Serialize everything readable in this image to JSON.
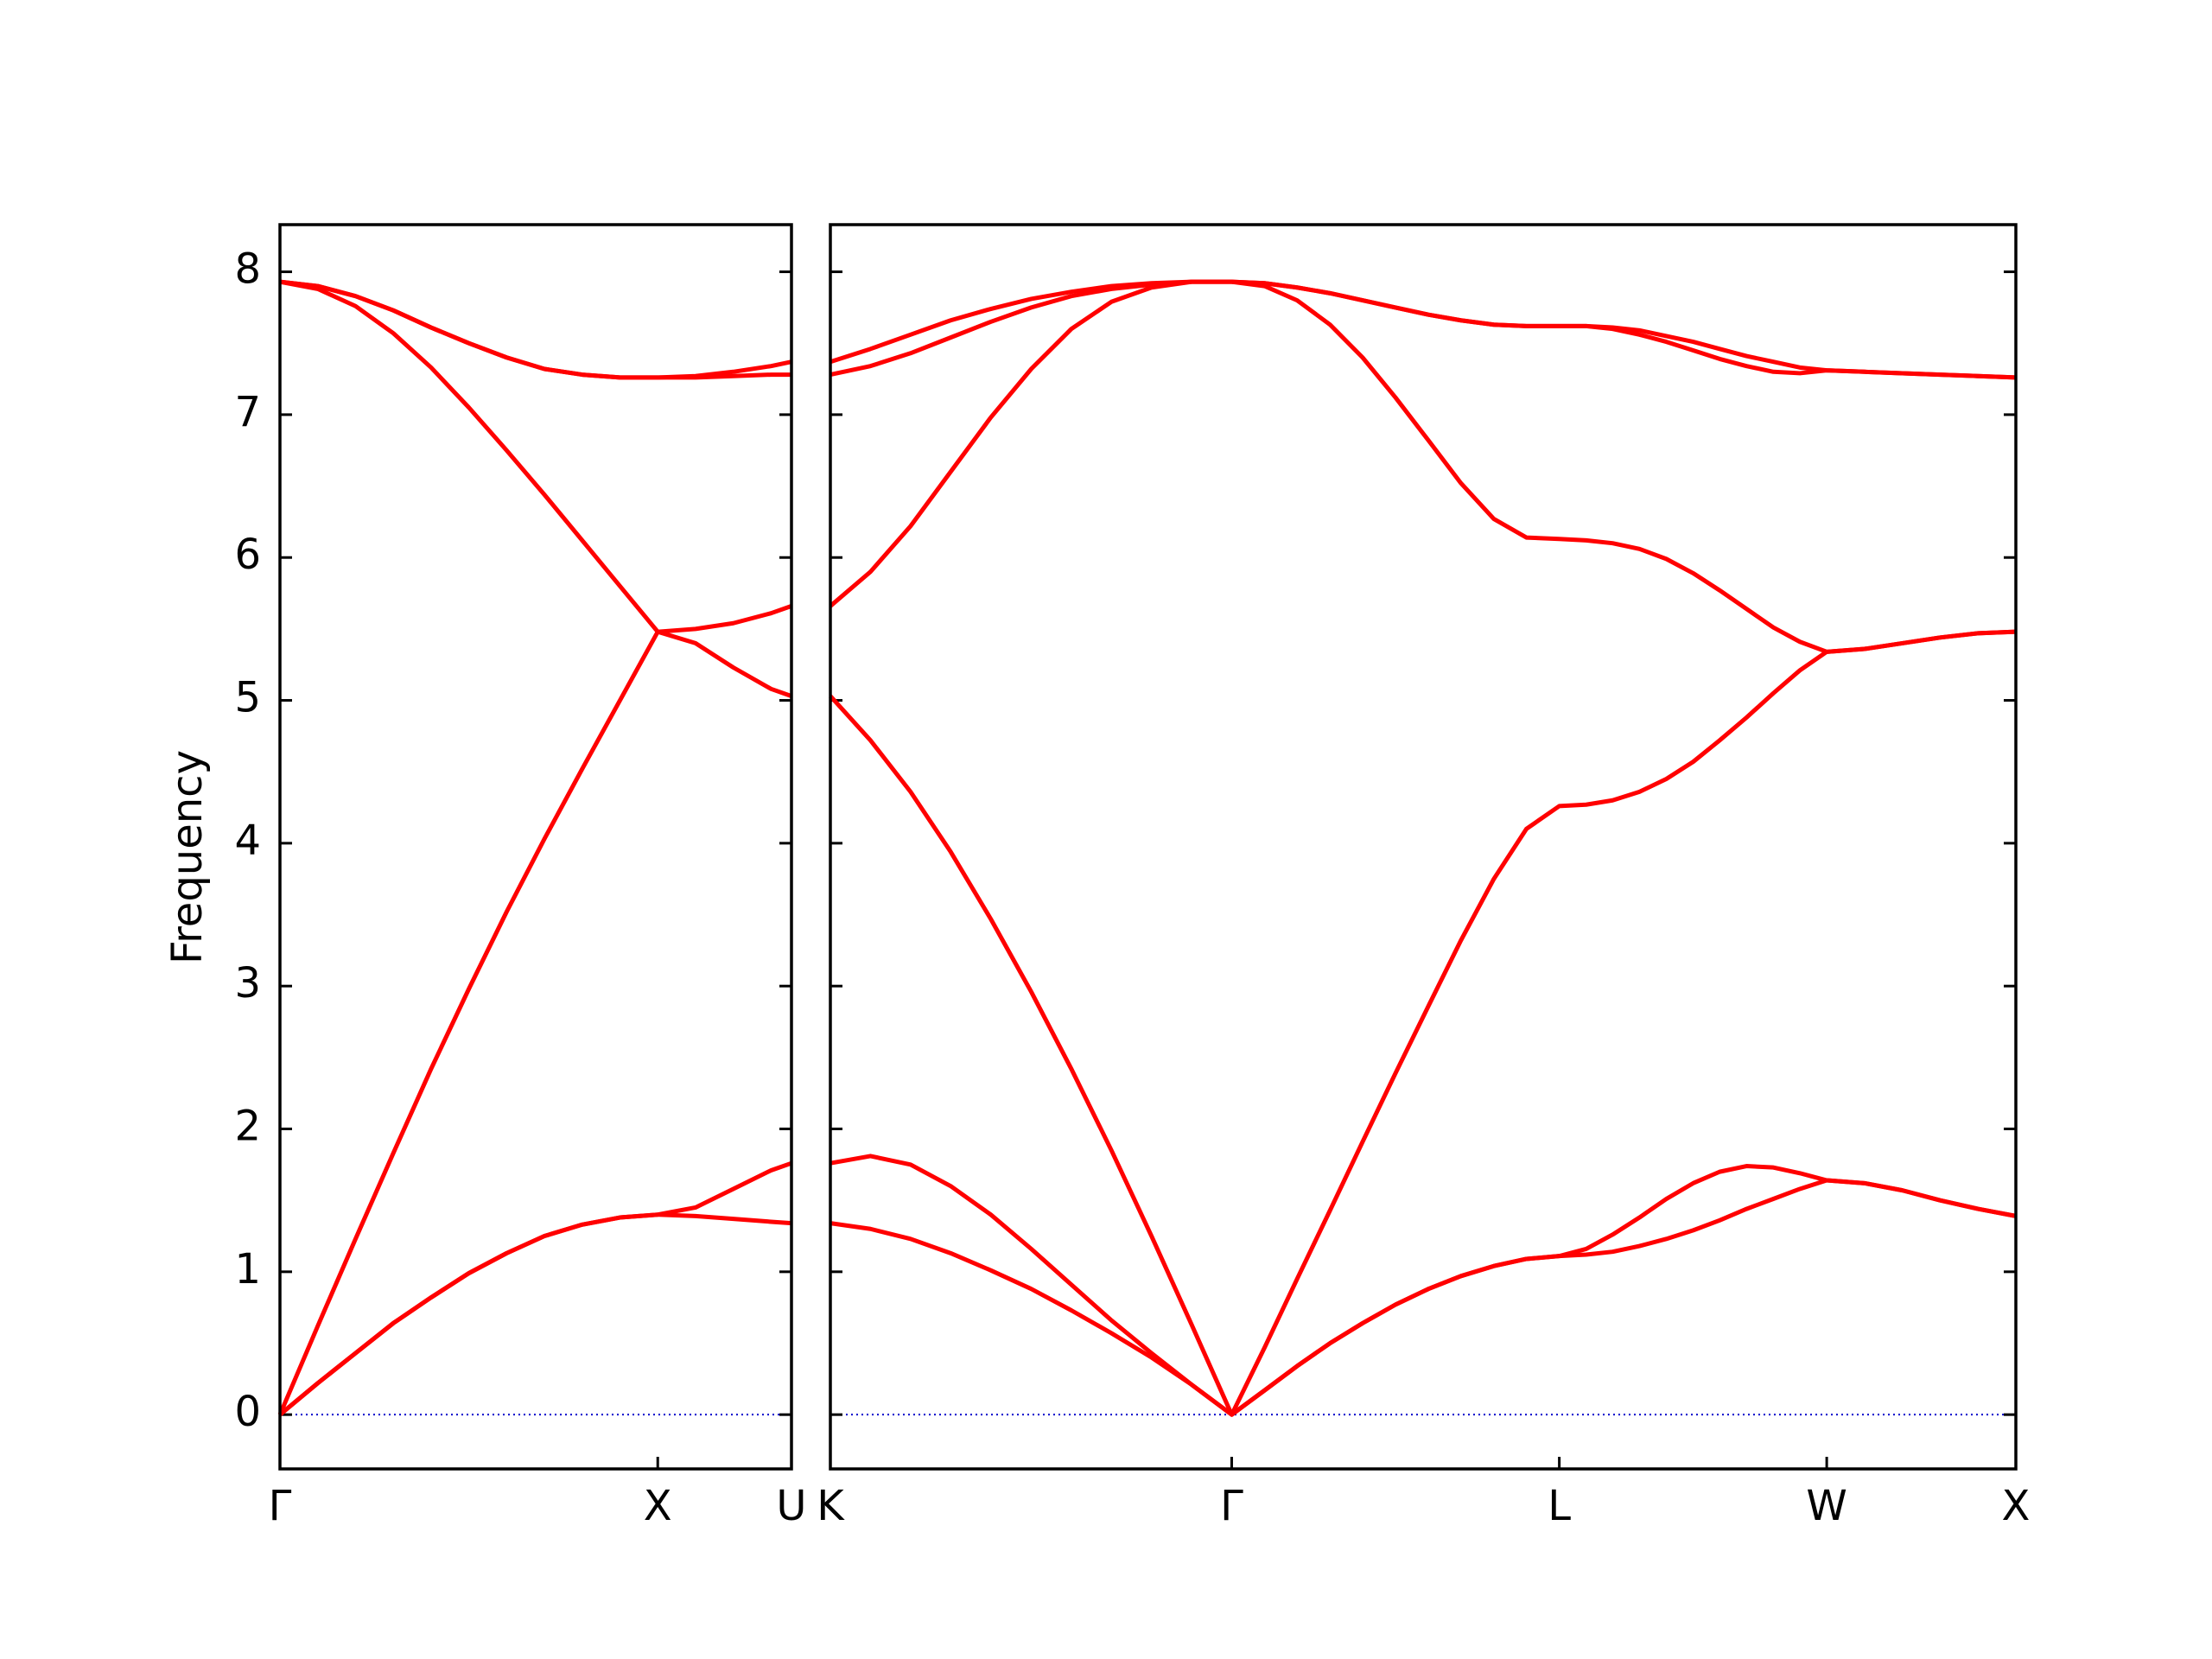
{
  "chart_data": [
    {
      "type": "line",
      "ylabel": "Frequency",
      "x": [
        0,
        0.1,
        0.2,
        0.3,
        0.4,
        0.5,
        0.6,
        0.7,
        0.8,
        0.9,
        1.0,
        1.1,
        1.2,
        1.3,
        1.354
      ],
      "xlim": [
        0,
        1.354
      ],
      "xticks": [
        {
          "value": 0,
          "label": "Γ"
        },
        {
          "value": 1,
          "label": "X"
        },
        {
          "value": 1.354,
          "label": "U"
        }
      ],
      "ylim": [
        -0.38,
        8.33
      ],
      "yticks": [
        0,
        1,
        2,
        3,
        4,
        5,
        6,
        7,
        8
      ],
      "reference_line": 0,
      "reference_color": "#0000cc",
      "series": [
        {
          "color": "#ff0000",
          "values": [
            0,
            0.22,
            0.43,
            0.64,
            0.82,
            0.99,
            1.13,
            1.25,
            1.33,
            1.38,
            1.4,
            1.39,
            1.37,
            1.35,
            1.34
          ]
        },
        {
          "color": "#ff0000",
          "values": [
            0,
            0.22,
            0.43,
            0.64,
            0.82,
            0.99,
            1.13,
            1.25,
            1.33,
            1.38,
            1.4,
            1.45,
            1.58,
            1.71,
            1.76
          ]
        },
        {
          "color": "#ff0000",
          "values": [
            0,
            0.62,
            1.23,
            1.83,
            2.42,
            2.98,
            3.52,
            4.03,
            4.52,
            5.0,
            5.48,
            5.4,
            5.23,
            5.08,
            5.03
          ]
        },
        {
          "color": "#ff0000",
          "values": [
            7.93,
            7.88,
            7.76,
            7.57,
            7.33,
            7.05,
            6.75,
            6.44,
            6.12,
            5.8,
            5.48,
            5.5,
            5.54,
            5.61,
            5.66
          ]
        },
        {
          "color": "#ff0000",
          "values": [
            7.93,
            7.9,
            7.83,
            7.73,
            7.61,
            7.5,
            7.4,
            7.32,
            7.28,
            7.26,
            7.26,
            7.26,
            7.27,
            7.28,
            7.28
          ]
        },
        {
          "color": "#ff0000",
          "values": [
            7.93,
            7.9,
            7.83,
            7.73,
            7.61,
            7.5,
            7.4,
            7.32,
            7.28,
            7.26,
            7.26,
            7.27,
            7.3,
            7.34,
            7.37
          ]
        }
      ]
    },
    {
      "type": "line",
      "x": [
        1.354,
        1.46,
        1.566,
        1.672,
        1.778,
        1.885,
        1.991,
        2.097,
        2.203,
        2.309,
        2.415,
        2.502,
        2.588,
        2.675,
        2.761,
        2.848,
        2.935,
        3.021,
        3.108,
        3.194,
        3.281,
        3.352,
        3.422,
        3.493,
        3.564,
        3.635,
        3.705,
        3.776,
        3.847,
        3.917,
        3.988,
        4.088,
        4.188,
        4.288,
        4.388,
        4.488
      ],
      "xlim": [
        1.354,
        4.488
      ],
      "xticks": [
        {
          "value": 1.354,
          "label": "K"
        },
        {
          "value": 2.415,
          "label": "Γ"
        },
        {
          "value": 3.281,
          "label": "L"
        },
        {
          "value": 3.988,
          "label": "W"
        },
        {
          "value": 4.488,
          "label": "X"
        }
      ],
      "ylim": [
        -0.38,
        8.33
      ],
      "yticks": [
        0,
        1,
        2,
        3,
        4,
        5,
        6,
        7,
        8
      ],
      "reference_line": 0,
      "reference_color": "#0000cc",
      "series": [
        {
          "color": "#ff0000",
          "values": [
            1.34,
            1.3,
            1.23,
            1.13,
            1.01,
            0.88,
            0.73,
            0.57,
            0.4,
            0.21,
            0,
            0.17,
            0.34,
            0.5,
            0.64,
            0.77,
            0.88,
            0.97,
            1.04,
            1.09,
            1.11,
            1.12,
            1.14,
            1.18,
            1.23,
            1.29,
            1.36,
            1.44,
            1.51,
            1.58,
            1.64,
            1.62,
            1.57,
            1.5,
            1.44,
            1.39
          ]
        },
        {
          "color": "#ff0000",
          "values": [
            1.76,
            1.81,
            1.75,
            1.6,
            1.4,
            1.16,
            0.91,
            0.66,
            0.43,
            0.21,
            0,
            0.17,
            0.34,
            0.5,
            0.64,
            0.77,
            0.88,
            0.97,
            1.04,
            1.09,
            1.11,
            1.16,
            1.26,
            1.38,
            1.51,
            1.62,
            1.7,
            1.74,
            1.73,
            1.69,
            1.64,
            1.62,
            1.57,
            1.5,
            1.44,
            1.39
          ]
        },
        {
          "color": "#ff0000",
          "values": [
            5.03,
            4.72,
            4.36,
            3.94,
            3.47,
            2.96,
            2.42,
            1.85,
            1.25,
            0.63,
            0,
            0.47,
            0.95,
            1.43,
            1.91,
            2.39,
            2.86,
            3.32,
            3.75,
            4.1,
            4.26,
            4.27,
            4.3,
            4.36,
            4.45,
            4.57,
            4.72,
            4.88,
            5.05,
            5.21,
            5.34,
            5.36,
            5.4,
            5.44,
            5.47,
            5.48
          ]
        },
        {
          "color": "#ff0000",
          "values": [
            5.66,
            5.9,
            6.22,
            6.6,
            6.98,
            7.32,
            7.6,
            7.79,
            7.89,
            7.93,
            7.93,
            7.9,
            7.8,
            7.63,
            7.4,
            7.12,
            6.82,
            6.52,
            6.27,
            6.14,
            6.13,
            6.12,
            6.1,
            6.06,
            5.99,
            5.89,
            5.77,
            5.64,
            5.51,
            5.41,
            5.34,
            5.36,
            5.4,
            5.44,
            5.47,
            5.48
          ]
        },
        {
          "color": "#ff0000",
          "values": [
            7.28,
            7.34,
            7.43,
            7.54,
            7.65,
            7.75,
            7.83,
            7.88,
            7.91,
            7.93,
            7.93,
            7.92,
            7.89,
            7.85,
            7.8,
            7.75,
            7.7,
            7.66,
            7.63,
            7.62,
            7.62,
            7.62,
            7.6,
            7.56,
            7.51,
            7.45,
            7.39,
            7.34,
            7.3,
            7.29,
            7.31,
            7.3,
            7.29,
            7.28,
            7.27,
            7.26
          ]
        },
        {
          "color": "#ff0000",
          "values": [
            7.37,
            7.46,
            7.56,
            7.66,
            7.74,
            7.81,
            7.86,
            7.9,
            7.92,
            7.93,
            7.93,
            7.92,
            7.89,
            7.85,
            7.8,
            7.75,
            7.7,
            7.66,
            7.63,
            7.62,
            7.62,
            7.62,
            7.61,
            7.59,
            7.55,
            7.51,
            7.46,
            7.41,
            7.37,
            7.33,
            7.31,
            7.3,
            7.29,
            7.28,
            7.27,
            7.26
          ]
        }
      ]
    }
  ]
}
